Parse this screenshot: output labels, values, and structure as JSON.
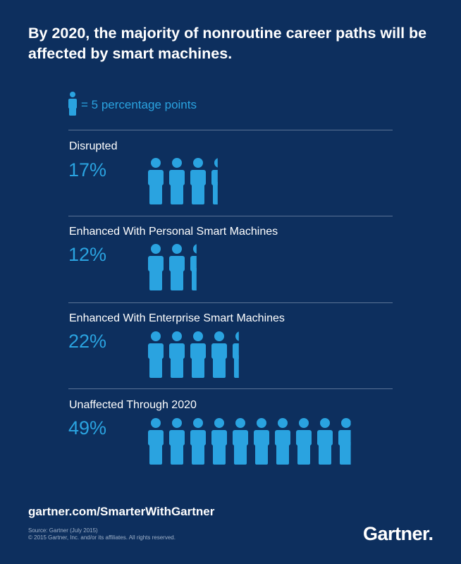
{
  "title": "By 2020, the majority of nonroutine career paths will be affected by smart machines.",
  "legend": {
    "text": "= 5 percentage points",
    "unit_value": 5
  },
  "colors": {
    "background": "#0d2f5e",
    "accent": "#2aa3e0",
    "text": "#ffffff",
    "divider": "#5a7396"
  },
  "chart_data": {
    "type": "pictograph",
    "unit_value": 5,
    "categories": [
      "Disrupted",
      "Enhanced With Personal Smart Machines",
      "Enhanced With Enterprise Smart Machines",
      "Unaffected Through 2020"
    ],
    "values": [
      17,
      12,
      22,
      49
    ],
    "value_labels": [
      "17%",
      "12%",
      "22%",
      "49%"
    ]
  },
  "footer": {
    "url": "gartner.com/SmarterWithGartner",
    "source_line1": "Source: Gartner  (July 2015)",
    "source_line2": "© 2015 Gartner, Inc. and/or its affiliates. All rights reserved.",
    "logo": "Gartner"
  }
}
